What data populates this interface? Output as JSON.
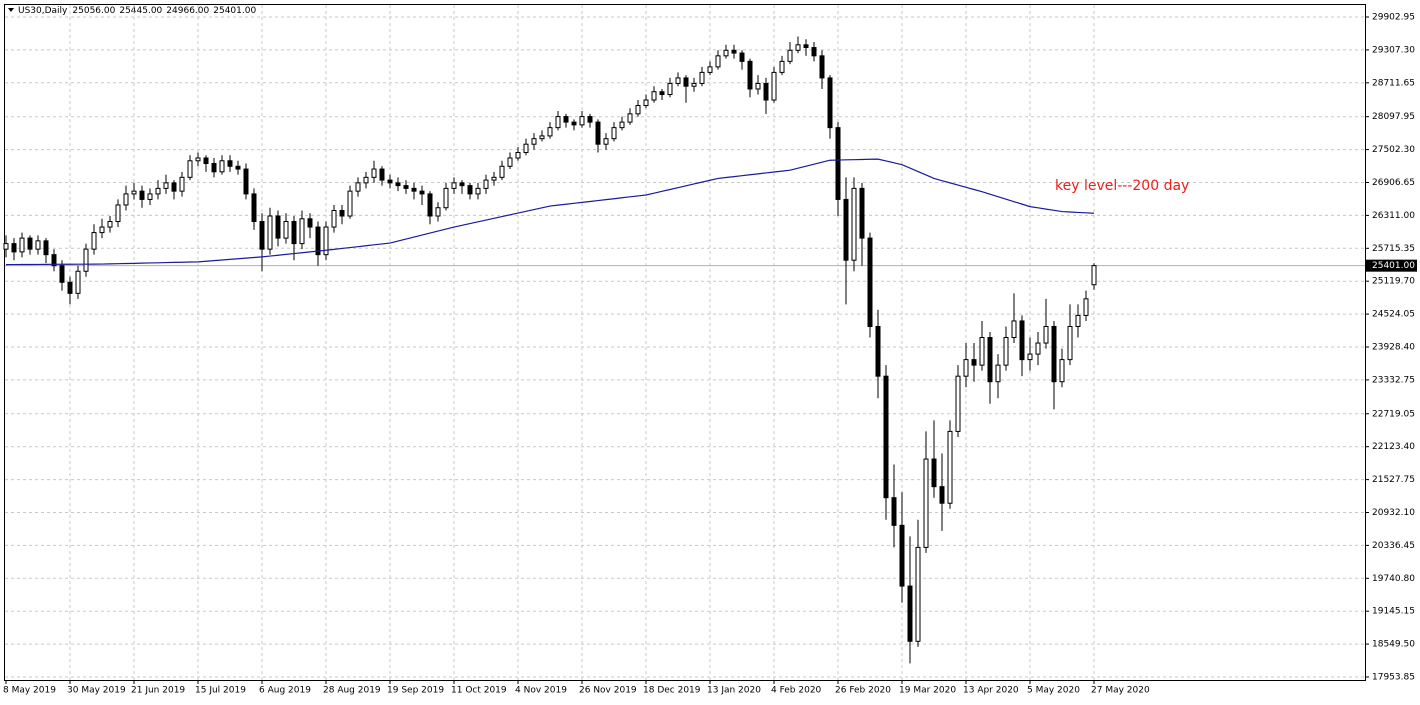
{
  "chart_data": {
    "type": "candlestick",
    "header": {
      "symbol": "US30,Daily",
      "ohlc": [
        "25056.00",
        "25445.00",
        "24966.00",
        "25401.00"
      ]
    },
    "ylim": [
      17899.5,
      30120.2
    ],
    "yticks": [
      {
        "value": 17953.85,
        "label": "17953.85"
      },
      {
        "value": 18549.5,
        "label": "18549.50"
      },
      {
        "value": 19145.15,
        "label": "19145.15"
      },
      {
        "value": 19740.8,
        "label": "19740.80"
      },
      {
        "value": 20336.45,
        "label": "20336.45"
      },
      {
        "value": 20932.1,
        "label": "20932.10"
      },
      {
        "value": 21527.75,
        "label": "21527.75"
      },
      {
        "value": 22123.4,
        "label": "22123.40"
      },
      {
        "value": 22719.05,
        "label": "22719.05"
      },
      {
        "value": 23332.75,
        "label": "23332.75"
      },
      {
        "value": 23928.4,
        "label": "23928.40"
      },
      {
        "value": 24524.05,
        "label": "24524.05"
      },
      {
        "value": 25119.7,
        "label": "25119.70"
      },
      {
        "value": 25715.35,
        "label": "25715.35"
      },
      {
        "value": 26311,
        "label": "26311.00"
      },
      {
        "value": 26906.65,
        "label": "26906.65"
      },
      {
        "value": 27502.3,
        "label": "27502.30"
      },
      {
        "value": 28097.95,
        "label": "28097.95"
      },
      {
        "value": 28711.65,
        "label": "28711.65"
      },
      {
        "value": 29307.3,
        "label": "29307.30"
      },
      {
        "value": 29902.95,
        "label": "29902.95"
      }
    ],
    "grid": true,
    "categories": [
      "8 May 2019",
      null,
      null,
      null,
      null,
      null,
      null,
      null,
      "30 May 2019",
      null,
      null,
      null,
      null,
      null,
      null,
      null,
      "21 Jun 2019",
      null,
      null,
      null,
      null,
      null,
      null,
      null,
      "15 Jul 2019",
      null,
      null,
      null,
      null,
      null,
      null,
      null,
      "6 Aug 2019",
      null,
      null,
      null,
      null,
      null,
      null,
      null,
      "28 Aug 2019",
      null,
      null,
      null,
      null,
      null,
      null,
      null,
      "19 Sep 2019",
      null,
      null,
      null,
      null,
      null,
      null,
      null,
      "11 Oct 2019",
      null,
      null,
      null,
      null,
      null,
      null,
      null,
      "4 Nov 2019",
      null,
      null,
      null,
      null,
      null,
      null,
      null,
      "26 Nov 2019",
      null,
      null,
      null,
      null,
      null,
      null,
      null,
      "18 Dec 2019",
      null,
      null,
      null,
      null,
      null,
      null,
      null,
      "13 Jan 2020",
      null,
      null,
      null,
      null,
      null,
      null,
      null,
      "4 Feb 2020",
      null,
      null,
      null,
      null,
      null,
      null,
      null,
      "26 Feb 2020",
      null,
      null,
      null,
      null,
      null,
      null,
      null,
      "19 Mar 2020",
      null,
      null,
      null,
      null,
      null,
      null,
      null,
      "13 Apr 2020",
      null,
      null,
      null,
      null,
      null,
      null,
      null,
      "5 May 2020",
      null,
      null,
      null,
      null,
      null,
      null,
      null,
      "27 May 2020"
    ],
    "ohlc": [
      [
        25700,
        25950,
        25550,
        25800
      ],
      [
        25800,
        25900,
        25500,
        25650
      ],
      [
        25650,
        26000,
        25550,
        25900
      ],
      [
        25900,
        25950,
        25600,
        25700
      ],
      [
        25700,
        25950,
        25600,
        25850
      ],
      [
        25850,
        25900,
        25450,
        25600
      ],
      [
        25600,
        25700,
        25300,
        25400
      ],
      [
        25400,
        25500,
        24950,
        25100
      ],
      [
        25100,
        25200,
        24700,
        24900
      ],
      [
        24900,
        25400,
        24800,
        25300
      ],
      [
        25300,
        25800,
        25200,
        25700
      ],
      [
        25700,
        26150,
        25600,
        26000
      ],
      [
        26000,
        26250,
        25900,
        26100
      ],
      [
        26100,
        26300,
        26000,
        26200
      ],
      [
        26200,
        26600,
        26100,
        26500
      ],
      [
        26500,
        26850,
        26400,
        26700
      ],
      [
        26700,
        26900,
        26600,
        26750
      ],
      [
        26750,
        26850,
        26450,
        26600
      ],
      [
        26600,
        26800,
        26500,
        26700
      ],
      [
        26700,
        26950,
        26600,
        26800
      ],
      [
        26800,
        27050,
        26700,
        26900
      ],
      [
        26900,
        26950,
        26600,
        26750
      ],
      [
        26750,
        27100,
        26650,
        27000
      ],
      [
        27000,
        27400,
        26950,
        27300
      ],
      [
        27300,
        27450,
        27200,
        27350
      ],
      [
        27350,
        27400,
        27100,
        27250
      ],
      [
        27250,
        27350,
        27000,
        27100
      ],
      [
        27100,
        27400,
        27050,
        27300
      ],
      [
        27300,
        27400,
        27100,
        27200
      ],
      [
        27200,
        27300,
        27050,
        27150
      ],
      [
        27150,
        27250,
        26600,
        26700
      ],
      [
        26700,
        26800,
        26050,
        26200
      ],
      [
        26200,
        26350,
        25300,
        25700
      ],
      [
        25700,
        26450,
        25600,
        26300
      ],
      [
        26300,
        26400,
        25750,
        25900
      ],
      [
        25900,
        26350,
        25800,
        26200
      ],
      [
        26200,
        26300,
        25500,
        25800
      ],
      [
        25800,
        26400,
        25700,
        26250
      ],
      [
        26250,
        26350,
        25900,
        26100
      ],
      [
        26100,
        26200,
        25400,
        25600
      ],
      [
        25600,
        26200,
        25500,
        26100
      ],
      [
        26100,
        26500,
        26000,
        26400
      ],
      [
        26400,
        26500,
        26150,
        26300
      ],
      [
        26300,
        26850,
        26250,
        26750
      ],
      [
        26750,
        27000,
        26650,
        26900
      ],
      [
        26900,
        27100,
        26800,
        27000
      ],
      [
        27000,
        27300,
        26900,
        27150
      ],
      [
        27150,
        27200,
        26850,
        26950
      ],
      [
        26950,
        27050,
        26800,
        26900
      ],
      [
        26900,
        27000,
        26750,
        26850
      ],
      [
        26850,
        26950,
        26700,
        26800
      ],
      [
        26800,
        26900,
        26600,
        26750
      ],
      [
        26750,
        26850,
        26500,
        26700
      ],
      [
        26700,
        26750,
        26150,
        26300
      ],
      [
        26300,
        26550,
        26200,
        26450
      ],
      [
        26450,
        26900,
        26400,
        26800
      ],
      [
        26800,
        27000,
        26700,
        26900
      ],
      [
        26900,
        26950,
        26700,
        26850
      ],
      [
        26850,
        26900,
        26600,
        26700
      ],
      [
        26700,
        26900,
        26600,
        26800
      ],
      [
        26800,
        27050,
        26700,
        26950
      ],
      [
        26950,
        27100,
        26850,
        27000
      ],
      [
        27000,
        27300,
        26950,
        27200
      ],
      [
        27200,
        27450,
        27150,
        27350
      ],
      [
        27350,
        27550,
        27300,
        27450
      ],
      [
        27450,
        27700,
        27400,
        27600
      ],
      [
        27600,
        27800,
        27500,
        27700
      ],
      [
        27700,
        27850,
        27650,
        27750
      ],
      [
        27750,
        28000,
        27700,
        27900
      ],
      [
        27900,
        28200,
        27850,
        28100
      ],
      [
        28100,
        28150,
        27900,
        28000
      ],
      [
        28000,
        28050,
        27850,
        27950
      ],
      [
        27950,
        28200,
        27900,
        28100
      ],
      [
        28100,
        28150,
        27900,
        28000
      ],
      [
        28000,
        28050,
        27450,
        27600
      ],
      [
        27600,
        27800,
        27500,
        27700
      ],
      [
        27700,
        28000,
        27650,
        27900
      ],
      [
        27900,
        28100,
        27850,
        28000
      ],
      [
        28000,
        28250,
        27950,
        28150
      ],
      [
        28150,
        28400,
        28100,
        28300
      ],
      [
        28300,
        28500,
        28250,
        28400
      ],
      [
        28400,
        28650,
        28350,
        28550
      ],
      [
        28550,
        28600,
        28400,
        28500
      ],
      [
        28500,
        28800,
        28450,
        28700
      ],
      [
        28700,
        28900,
        28650,
        28800
      ],
      [
        28800,
        28850,
        28350,
        28650
      ],
      [
        28650,
        28800,
        28550,
        28700
      ],
      [
        28700,
        29000,
        28650,
        28900
      ],
      [
        28900,
        29100,
        28850,
        29000
      ],
      [
        29000,
        29300,
        28950,
        29200
      ],
      [
        29200,
        29400,
        29150,
        29300
      ],
      [
        29300,
        29400,
        29150,
        29250
      ],
      [
        29250,
        29300,
        28950,
        29100
      ],
      [
        29100,
        29150,
        28450,
        28600
      ],
      [
        28600,
        28850,
        28500,
        28700
      ],
      [
        28700,
        28800,
        28150,
        28400
      ],
      [
        28400,
        29000,
        28350,
        28900
      ],
      [
        28900,
        29200,
        28850,
        29100
      ],
      [
        29100,
        29450,
        29050,
        29300
      ],
      [
        29300,
        29550,
        29250,
        29400
      ],
      [
        29400,
        29500,
        29200,
        29350
      ],
      [
        29350,
        29450,
        29100,
        29200
      ],
      [
        29200,
        29300,
        28600,
        28800
      ],
      [
        28800,
        28850,
        27700,
        27900
      ],
      [
        27900,
        28000,
        26300,
        26600
      ],
      [
        26600,
        27000,
        24700,
        25500
      ],
      [
        25500,
        27000,
        25300,
        26800
      ],
      [
        26800,
        26900,
        25400,
        25900
      ],
      [
        25900,
        26000,
        24100,
        24300
      ],
      [
        24300,
        24600,
        23000,
        23400
      ],
      [
        23400,
        23600,
        20800,
        21200
      ],
      [
        21200,
        21800,
        20300,
        20700
      ],
      [
        20700,
        21300,
        19300,
        19600
      ],
      [
        19600,
        20500,
        18200,
        18600
      ],
      [
        18600,
        20800,
        18500,
        20300
      ],
      [
        20300,
        22400,
        20200,
        21900
      ],
      [
        21900,
        22600,
        21200,
        21400
      ],
      [
        21400,
        22000,
        20600,
        21100
      ],
      [
        21100,
        22600,
        21000,
        22400
      ],
      [
        22400,
        23600,
        22300,
        23400
      ],
      [
        23400,
        24000,
        23200,
        23700
      ],
      [
        23700,
        24000,
        23300,
        23600
      ],
      [
        23600,
        24400,
        23500,
        24100
      ],
      [
        24100,
        24200,
        22900,
        23300
      ],
      [
        23300,
        23800,
        23000,
        23600
      ],
      [
        23600,
        24300,
        23500,
        24100
      ],
      [
        24100,
        24900,
        24000,
        24400
      ],
      [
        24400,
        24500,
        23400,
        23700
      ],
      [
        23700,
        24100,
        23500,
        23800
      ],
      [
        23800,
        24200,
        23600,
        24000
      ],
      [
        24000,
        24800,
        23900,
        24300
      ],
      [
        24300,
        24400,
        22800,
        23300
      ],
      [
        23300,
        23900,
        23200,
        23700
      ],
      [
        23700,
        24700,
        23600,
        24300
      ],
      [
        24300,
        24700,
        24100,
        24500
      ],
      [
        24500,
        24950,
        24400,
        24800
      ],
      [
        25056,
        25445,
        24966,
        25401
      ]
    ],
    "ma": {
      "color": "#1a1a9c",
      "values": [
        25420,
        25421,
        25422,
        25422,
        25423,
        25424,
        25425,
        25426,
        25427,
        25428,
        25428,
        25429,
        25430,
        25433,
        25437,
        25440,
        25443,
        25447,
        25450,
        25453,
        25457,
        25460,
        25463,
        25467,
        25470,
        25481,
        25492,
        25504,
        25515,
        25526,
        25537,
        25549,
        25560,
        25575,
        25590,
        25605,
        25620,
        25635,
        25650,
        25665,
        25680,
        25696,
        25713,
        25729,
        25745,
        25761,
        25778,
        25794,
        25810,
        25846,
        25883,
        25919,
        25955,
        25991,
        26028,
        26064,
        26100,
        26132,
        26163,
        26195,
        26227,
        26258,
        26290,
        26322,
        26353,
        26385,
        26417,
        26448,
        26480,
        26497,
        26513,
        26530,
        26547,
        26563,
        26580,
        26597,
        26613,
        26630,
        26647,
        26663,
        26680,
        26713,
        26747,
        26780,
        26813,
        26847,
        26880,
        26913,
        26947,
        26980,
        26997,
        27013,
        27030,
        27047,
        27063,
        27080,
        27097,
        27113,
        27130,
        27166,
        27202,
        27238,
        27274,
        27310,
        27313,
        27317,
        27320,
        27323,
        27327,
        27330,
        27297,
        27263,
        27230,
        27168,
        27105,
        27043,
        26980,
        26940,
        26900,
        26860,
        26820,
        26780,
        26740,
        26695,
        26650,
        26605,
        26560,
        26515,
        26470,
        26448,
        26425,
        26403,
        26380,
        26373,
        26365,
        26358,
        26350
      ]
    },
    "current_price": {
      "value": 25401,
      "label": "25401.00"
    },
    "annotation": {
      "text": "key level---200 day",
      "color": "#e8211c"
    }
  }
}
